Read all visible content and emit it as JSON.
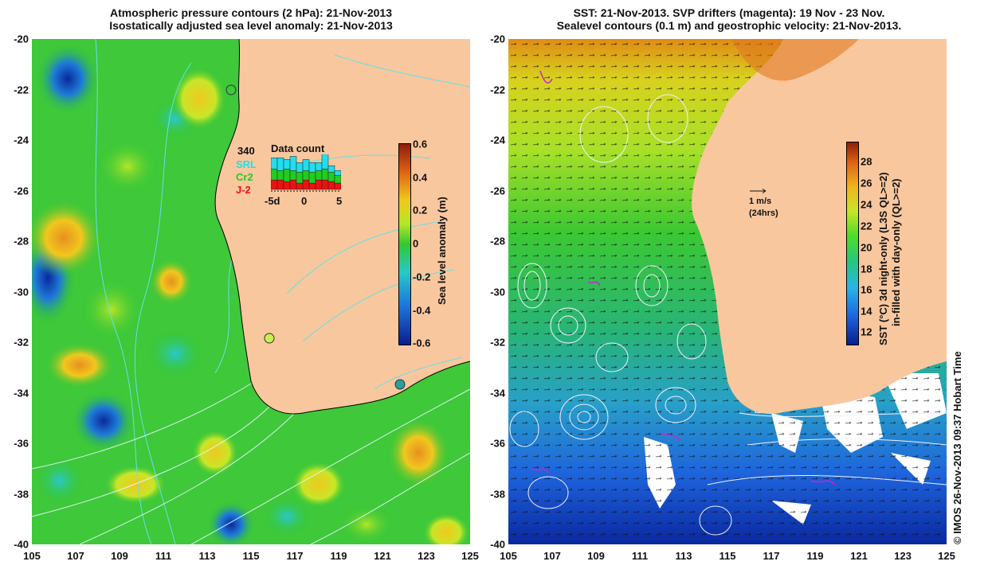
{
  "left_panel": {
    "title_line1": "Atmospheric pressure contours (2 hPa): 21-Nov-2013",
    "title_line2": "Isostatically adjusted sea level anomaly: 21-Nov-2013",
    "colorbar_label": "Sea level anomaly (m)",
    "colorbar_ticks": [
      "0.6",
      "0.4",
      "0.2",
      "0",
      "-0.2",
      "-0.4",
      "-0.6"
    ],
    "inset": {
      "title": "Data count",
      "count": "340",
      "legend": [
        {
          "name": "SRL",
          "color": "#22ddee"
        },
        {
          "name": "Cr2",
          "color": "#22cc22"
        },
        {
          "name": "J-2",
          "color": "#ee1111"
        }
      ],
      "x_ticks": [
        "-5d",
        "0",
        "5"
      ],
      "bars": [
        {
          "srl": 0.35,
          "cr2": 0.35,
          "j2": 0.3
        },
        {
          "srl": 0.4,
          "cr2": 0.3,
          "j2": 0.3
        },
        {
          "srl": 0.3,
          "cr2": 0.4,
          "j2": 0.25
        },
        {
          "srl": 0.45,
          "cr2": 0.3,
          "j2": 0.3
        },
        {
          "srl": 0.3,
          "cr2": 0.35,
          "j2": 0.2
        },
        {
          "srl": 0.35,
          "cr2": 0.3,
          "j2": 0.3
        },
        {
          "srl": 0.3,
          "cr2": 0.35,
          "j2": 0.2
        },
        {
          "srl": 0.25,
          "cr2": 0.3,
          "j2": 0.3
        },
        {
          "srl": 0.5,
          "cr2": 0.35,
          "j2": 0.3
        },
        {
          "srl": 0.2,
          "cr2": 0.3,
          "j2": 0.25
        },
        {
          "srl": 0.15,
          "cr2": 0.25,
          "j2": 0.2
        }
      ]
    }
  },
  "right_panel": {
    "title_line1": "SST: 21-Nov-2013. SVP drifters (magenta): 19 Nov - 23 Nov.",
    "title_line2": "Sealevel contours (0.1 m) and geostrophic velocity: 21-Nov-2013.",
    "colorbar_label_line1": "SST (°C)  3d night-only (L3S QL>=2)",
    "colorbar_label_line2": "in-filled with day-only (QL>=2)",
    "colorbar_ticks": [
      "28",
      "26",
      "24",
      "22",
      "20",
      "18",
      "16",
      "14",
      "12"
    ],
    "velocity_key_label": "1 m/s",
    "velocity_key_sub": "(24hrs)",
    "credit": "© IMOS 26-Nov-2013 09:37 Hobart Time"
  },
  "axes": {
    "lat_ticks": [
      "-20",
      "-22",
      "-24",
      "-26",
      "-28",
      "-30",
      "-32",
      "-34",
      "-36",
      "-38",
      "-40"
    ],
    "lon_ticks": [
      "105",
      "107",
      "109",
      "111",
      "113",
      "115",
      "117",
      "119",
      "121",
      "123",
      "125"
    ]
  },
  "colors": {
    "land": "#f9c79e",
    "coast_line": "#000000",
    "sla_colormap": [
      "#0a1e8c",
      "#1e78dc",
      "#28c8c8",
      "#32c832",
      "#b4e628",
      "#f0c81e",
      "#dc6414",
      "#8c1e0a"
    ],
    "sst_colormap": [
      "#0a1e8c",
      "#1e64dc",
      "#28b4e6",
      "#28c878",
      "#50dc28",
      "#c8e628",
      "#f0b41e",
      "#dc6414",
      "#8c1e0a"
    ]
  }
}
